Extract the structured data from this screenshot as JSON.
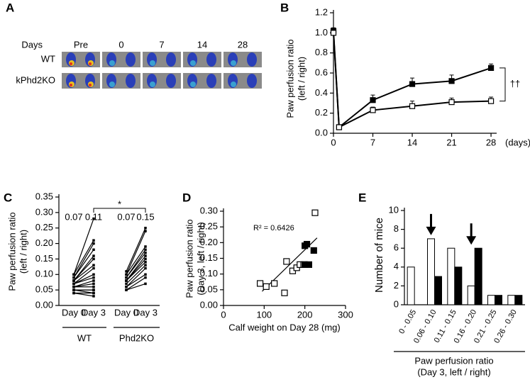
{
  "chart_data": [
    {
      "type": "image_grid",
      "panel_label": "A",
      "row_header": "Days",
      "columns": [
        "Pre",
        "0",
        "7",
        "14",
        "28"
      ],
      "rows": [
        "WT",
        "kPhd2KO"
      ]
    },
    {
      "type": "line",
      "panel_label": "B",
      "ylabel": [
        "Paw perfusion ratio",
        "(left / right)"
      ],
      "x_unit": "(days)",
      "annotation": "††",
      "x": [
        0,
        1,
        7,
        14,
        21,
        28
      ],
      "xlim": [
        0,
        29
      ],
      "xticks": [
        0,
        7,
        14,
        21,
        28
      ],
      "ylim": [
        0,
        1.2
      ],
      "yticks": [
        {
          "value": 0,
          "label": "0.0"
        },
        0.2,
        0.4,
        0.6,
        0.8,
        {
          "value": 1,
          "label": "1.0"
        },
        1.2
      ],
      "series": [
        {
          "color": "#000000",
          "values": [
            1.02,
            0.06,
            0.33,
            0.49,
            0.52,
            0.65
          ],
          "errors": [
            0.03,
            0.01,
            0.05,
            0.06,
            0.06,
            0.04
          ]
        },
        {
          "color": "#ffffff",
          "values": [
            1.0,
            0.06,
            0.23,
            0.27,
            0.31,
            0.32
          ],
          "errors": [
            0.03,
            0.01,
            0.03,
            0.05,
            0.04,
            0.04
          ]
        }
      ]
    },
    {
      "type": "paired_dot",
      "panel_label": "C",
      "ylabel": [
        "Paw perfusion ratio",
        "(left / right)"
      ],
      "categories": [
        "Day 0",
        "Day 3",
        "Day 0",
        "Day 3"
      ],
      "means": [
        0.07,
        0.11,
        0.07,
        0.15
      ],
      "annotation": "*",
      "ylim": [
        0,
        0.35
      ],
      "yticks": [
        {
          "value": 0,
          "label": "0.00"
        },
        0.05,
        {
          "value": 0.1,
          "label": "0.10"
        },
        0.15,
        {
          "value": 0.2,
          "label": "0.20"
        },
        0.25,
        {
          "value": 0.3,
          "label": "0.30"
        },
        0.35
      ],
      "groups": [
        {
          "name": "WT",
          "day0": [
            0.1,
            0.1,
            0.09,
            0.09,
            0.08,
            0.08,
            0.08,
            0.07,
            0.07,
            0.07,
            0.06,
            0.06,
            0.06,
            0.05,
            0.05,
            0.05,
            0.04,
            0.04
          ],
          "day3": [
            0.28,
            0.21,
            0.2,
            0.18,
            0.16,
            0.15,
            0.13,
            0.12,
            0.1,
            0.09,
            0.08,
            0.07,
            0.06,
            0.05,
            0.05,
            0.04,
            0.04,
            0.03
          ]
        },
        {
          "name": "Phd2KO",
          "day0": [
            0.11,
            0.1,
            0.1,
            0.09,
            0.09,
            0.08,
            0.08,
            0.08,
            0.07,
            0.06,
            0.06,
            0.05,
            0.05
          ],
          "day3": [
            0.25,
            0.24,
            0.19,
            0.18,
            0.17,
            0.16,
            0.15,
            0.14,
            0.13,
            0.12,
            0.1,
            0.09,
            0.07
          ]
        }
      ]
    },
    {
      "type": "scatter",
      "panel_label": "D",
      "ylabel": [
        "Paw perfusion ratio",
        "(Day 3, left / right)"
      ],
      "xlabel": "Calf weight on Day 28 (mg)",
      "annotation": "R² = 0.6426",
      "xlim": [
        0,
        300
      ],
      "xticks": [
        0,
        100,
        200,
        300
      ],
      "ylim": [
        0,
        0.3
      ],
      "yticks": [
        {
          "value": 0,
          "label": "0.00"
        },
        0.05,
        {
          "value": 0.1,
          "label": "0.10"
        },
        0.15,
        {
          "value": 0.2,
          "label": "0.20"
        },
        0.25,
        {
          "value": 0.3,
          "label": "0.30"
        }
      ],
      "series": [
        {
          "color": "#ffffff",
          "x": [
            90,
            105,
            125,
            150,
            155,
            170,
            180,
            188,
            197,
            225
          ],
          "values": [
            0.07,
            0.06,
            0.07,
            0.04,
            0.14,
            0.11,
            0.12,
            0.13,
            0.13,
            0.295
          ]
        },
        {
          "color": "#000000",
          "x": [
            200,
            205,
            222,
            200,
            210
          ],
          "values": [
            0.19,
            0.195,
            0.175,
            0.13,
            0.13
          ]
        }
      ],
      "trend_line": {
        "x": [
          95,
          230
        ],
        "y": [
          0.045,
          0.215
        ]
      }
    },
    {
      "type": "bar",
      "panel_label": "E",
      "ylabel": "Number of mice",
      "xlabel": [
        "Paw perfusion ratio",
        "(Day 3, left / right)"
      ],
      "categories": [
        "0 - 0.05",
        "0.06 - 0.10",
        "0.11 - 0.15",
        "0.16 - 0.20",
        "0.21 - 0.25",
        "0.26 - 0.30"
      ],
      "ylim": [
        0,
        10
      ],
      "yticks": [
        0,
        2,
        4,
        6,
        8,
        10
      ],
      "series": [
        {
          "color": "#ffffff",
          "values": [
            4,
            7,
            6,
            2,
            1,
            1
          ]
        },
        {
          "color": "#000000",
          "values": [
            0,
            3,
            4,
            6,
            1,
            1
          ]
        }
      ]
    }
  ]
}
